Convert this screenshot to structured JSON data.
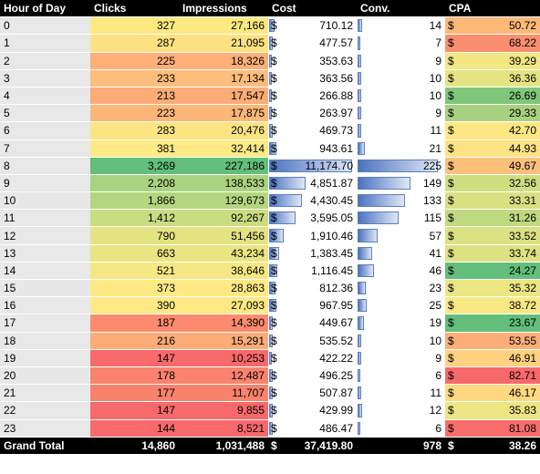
{
  "headers": {
    "hour": "Hour of Day",
    "clicks": "Clicks",
    "impressions": "Impressions",
    "cost": "Cost",
    "conv": "Conv.",
    "cpa": "CPA"
  },
  "currency_symbol": "$",
  "rows": [
    {
      "hour": "0",
      "clicks": "327",
      "impressions": "27,166",
      "cost": "710.12",
      "conv": "14",
      "cpa": "50.72",
      "click_bg": "#fde882",
      "cpa_bg": "#fcb978"
    },
    {
      "hour": "1",
      "clicks": "287",
      "impressions": "21,095",
      "cost": "477.57",
      "conv": "7",
      "cpa": "68.22",
      "click_bg": "#fee182",
      "cpa_bg": "#f98f70"
    },
    {
      "hour": "2",
      "clicks": "225",
      "impressions": "18,326",
      "cost": "353.63",
      "conv": "9",
      "cpa": "39.29",
      "click_bg": "#fcaf77",
      "cpa_bg": "#f2e783"
    },
    {
      "hour": "3",
      "clicks": "233",
      "impressions": "17,134",
      "cost": "363.56",
      "conv": "10",
      "cpa": "36.36",
      "click_bg": "#fdbd7c",
      "cpa_bg": "#e5e482"
    },
    {
      "hour": "4",
      "clicks": "213",
      "impressions": "17,547",
      "cost": "266.88",
      "conv": "10",
      "cpa": "26.69",
      "click_bg": "#fcac76",
      "cpa_bg": "#80c77c"
    },
    {
      "hour": "5",
      "clicks": "223",
      "impressions": "17,875",
      "cost": "263.97",
      "conv": "9",
      "cpa": "29.33",
      "click_bg": "#fcb678",
      "cpa_bg": "#a8d17f"
    },
    {
      "hour": "6",
      "clicks": "283",
      "impressions": "20,476",
      "cost": "469.73",
      "conv": "11",
      "cpa": "42.70",
      "click_bg": "#fde482",
      "cpa_bg": "#fde784"
    },
    {
      "hour": "7",
      "clicks": "381",
      "impassions": "",
      "impressions": "32,414",
      "cost": "943.61",
      "conv": "21",
      "cpa": "44.93",
      "click_bg": "#fdea84",
      "cpa_bg": "#fee283"
    },
    {
      "hour": "8",
      "clicks": "3,269",
      "impressions": "227,186",
      "cost": "11,174.70",
      "conv": "225",
      "cpa": "49.67",
      "click_bg": "#63be7b",
      "cpa_bg": "#fcc07b"
    },
    {
      "hour": "9",
      "clicks": "2,208",
      "impressions": "138,533",
      "cost": "4,851.87",
      "conv": "149",
      "cpa": "32.56",
      "click_bg": "#aad380",
      "cpa_bg": "#d0de82"
    },
    {
      "hour": "10",
      "clicks": "1,866",
      "impressions": "129,673",
      "cost": "4,430.45",
      "conv": "133",
      "cpa": "33.31",
      "click_bg": "#b5d680",
      "cpa_bg": "#d8e082"
    },
    {
      "hour": "11",
      "clicks": "1,412",
      "impressions": "92,267",
      "cost": "3,595.05",
      "conv": "115",
      "cpa": "31.26",
      "click_bg": "#c9dc81",
      "cpa_bg": "#bed980"
    },
    {
      "hour": "12",
      "clicks": "790",
      "impressions": "51,456",
      "cost": "1,910.46",
      "conv": "57",
      "cpa": "33.52",
      "click_bg": "#e3e382",
      "cpa_bg": "#dbe182"
    },
    {
      "hour": "13",
      "clicks": "663",
      "impressions": "43,234",
      "cost": "1,383.45",
      "conv": "41",
      "cpa": "33.74",
      "click_bg": "#eae582",
      "cpa_bg": "#dde182"
    },
    {
      "hour": "14",
      "clicks": "521",
      "impressions": "38,646",
      "cost": "1,116.45",
      "conv": "46",
      "cpa": "24.27",
      "click_bg": "#f5e884",
      "cpa_bg": "#63be7b"
    },
    {
      "hour": "15",
      "clicks": "373",
      "impressions": "28,863",
      "cost": "812.36",
      "conv": "23",
      "cpa": "35.32",
      "click_bg": "#fee984",
      "cpa_bg": "#ebe583"
    },
    {
      "hour": "16",
      "clicks": "390",
      "impressions": "27,093",
      "cost": "967.95",
      "conv": "25",
      "cpa": "38.72",
      "click_bg": "#fee984",
      "cpa_bg": "#f8e984"
    },
    {
      "hour": "17",
      "clicks": "187",
      "impressions": "14,390",
      "cost": "449.67",
      "conv": "19",
      "cpa": "23.67",
      "click_bg": "#fa8b6e",
      "cpa_bg": "#63be7b"
    },
    {
      "hour": "18",
      "clicks": "216",
      "impressions": "15,291",
      "cost": "535.52",
      "conv": "10",
      "cpa": "53.55",
      "click_bg": "#fcac76",
      "cpa_bg": "#fcae78"
    },
    {
      "hour": "19",
      "clicks": "147",
      "impressions": "10,253",
      "cost": "422.22",
      "conv": "9",
      "cpa": "46.91",
      "click_bg": "#f8696b",
      "cpa_bg": "#fed280"
    },
    {
      "hour": "20",
      "clicks": "178",
      "impressions": "12,487",
      "cost": "496.25",
      "conv": "6",
      "cpa": "82.71",
      "click_bg": "#f9836e",
      "cpa_bg": "#f8696b"
    },
    {
      "hour": "21",
      "clicks": "177",
      "impressions": "11,707",
      "cost": "507.87",
      "conv": "11",
      "cpa": "46.17",
      "click_bg": "#f9826d",
      "cpa_bg": "#fed981"
    },
    {
      "hour": "22",
      "clicks": "147",
      "impressions": "9,855",
      "cost": "429.99",
      "conv": "12",
      "cpa": "35.83",
      "click_bg": "#f8696b",
      "cpa_bg": "#ede583"
    },
    {
      "hour": "23",
      "clicks": "144",
      "impressions": "8,521",
      "cost": "486.47",
      "conv": "6",
      "cpa": "81.08",
      "click_bg": "#f8696b",
      "cpa_bg": "#f86d6c"
    }
  ],
  "footer": {
    "label": "Grand Total",
    "clicks": "14,860",
    "impressions": "1,031,488",
    "cost": "37,419.80",
    "conv": "978",
    "cpa": "38.26"
  }
}
